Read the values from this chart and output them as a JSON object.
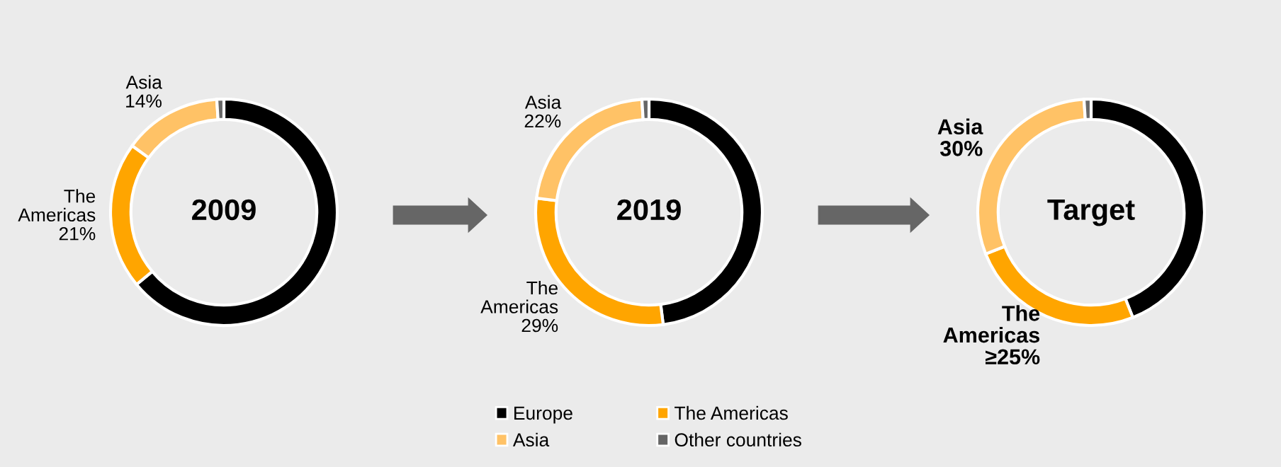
{
  "chart_data": [
    {
      "type": "donut",
      "title": "2009",
      "categories": [
        null,
        "The\nAmericas",
        "Asia",
        null
      ],
      "values": [
        64,
        21,
        14,
        1
      ],
      "colors": [
        "#000000",
        "#ffa500",
        "#ffc266",
        "#666666"
      ],
      "value_labels": [
        null,
        "21%",
        "14%",
        null
      ]
    },
    {
      "type": "donut",
      "title": "2019",
      "categories": [
        "Europe",
        "The Americas",
        "Asia",
        "Other countries"
      ],
      "values": [
        48,
        29,
        22,
        1
      ],
      "colors": [
        "#000000",
        "#ffa500",
        "#ffc266",
        "#666666"
      ],
      "value_labels": [
        null,
        "The\nAmericas\n29%",
        "Asia\n22%",
        null
      ],
      "legend": "bottom"
    },
    {
      "type": "donut",
      "title": "Target",
      "categories": [
        null,
        "The\nAmericas",
        "Asia",
        null
      ],
      "values": [
        44,
        25,
        30,
        1
      ],
      "colors": [
        "#000000",
        "#ffa500",
        "#ffc266",
        "#666666"
      ],
      "value_labels": [
        null,
        "≥25%",
        "30%",
        null
      ]
    }
  ]
}
